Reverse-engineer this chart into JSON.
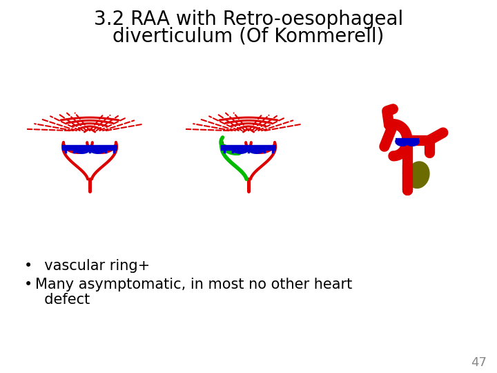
{
  "title_line1": "3.2 RAA with Retro-oesophageal",
  "title_line2": "diverticulum (Of Kommerell)",
  "title_fontsize": 20,
  "bullet1": "  vascular ring+",
  "bullet2": "Many asymptomatic, in most no other heart",
  "bullet2b": "  defect",
  "page_number": "47",
  "bg_color": "#ffffff",
  "text_color": "#000000",
  "red": "#dd0000",
  "blue": "#0000cc",
  "green": "#00bb00",
  "olive": "#6b6b00"
}
